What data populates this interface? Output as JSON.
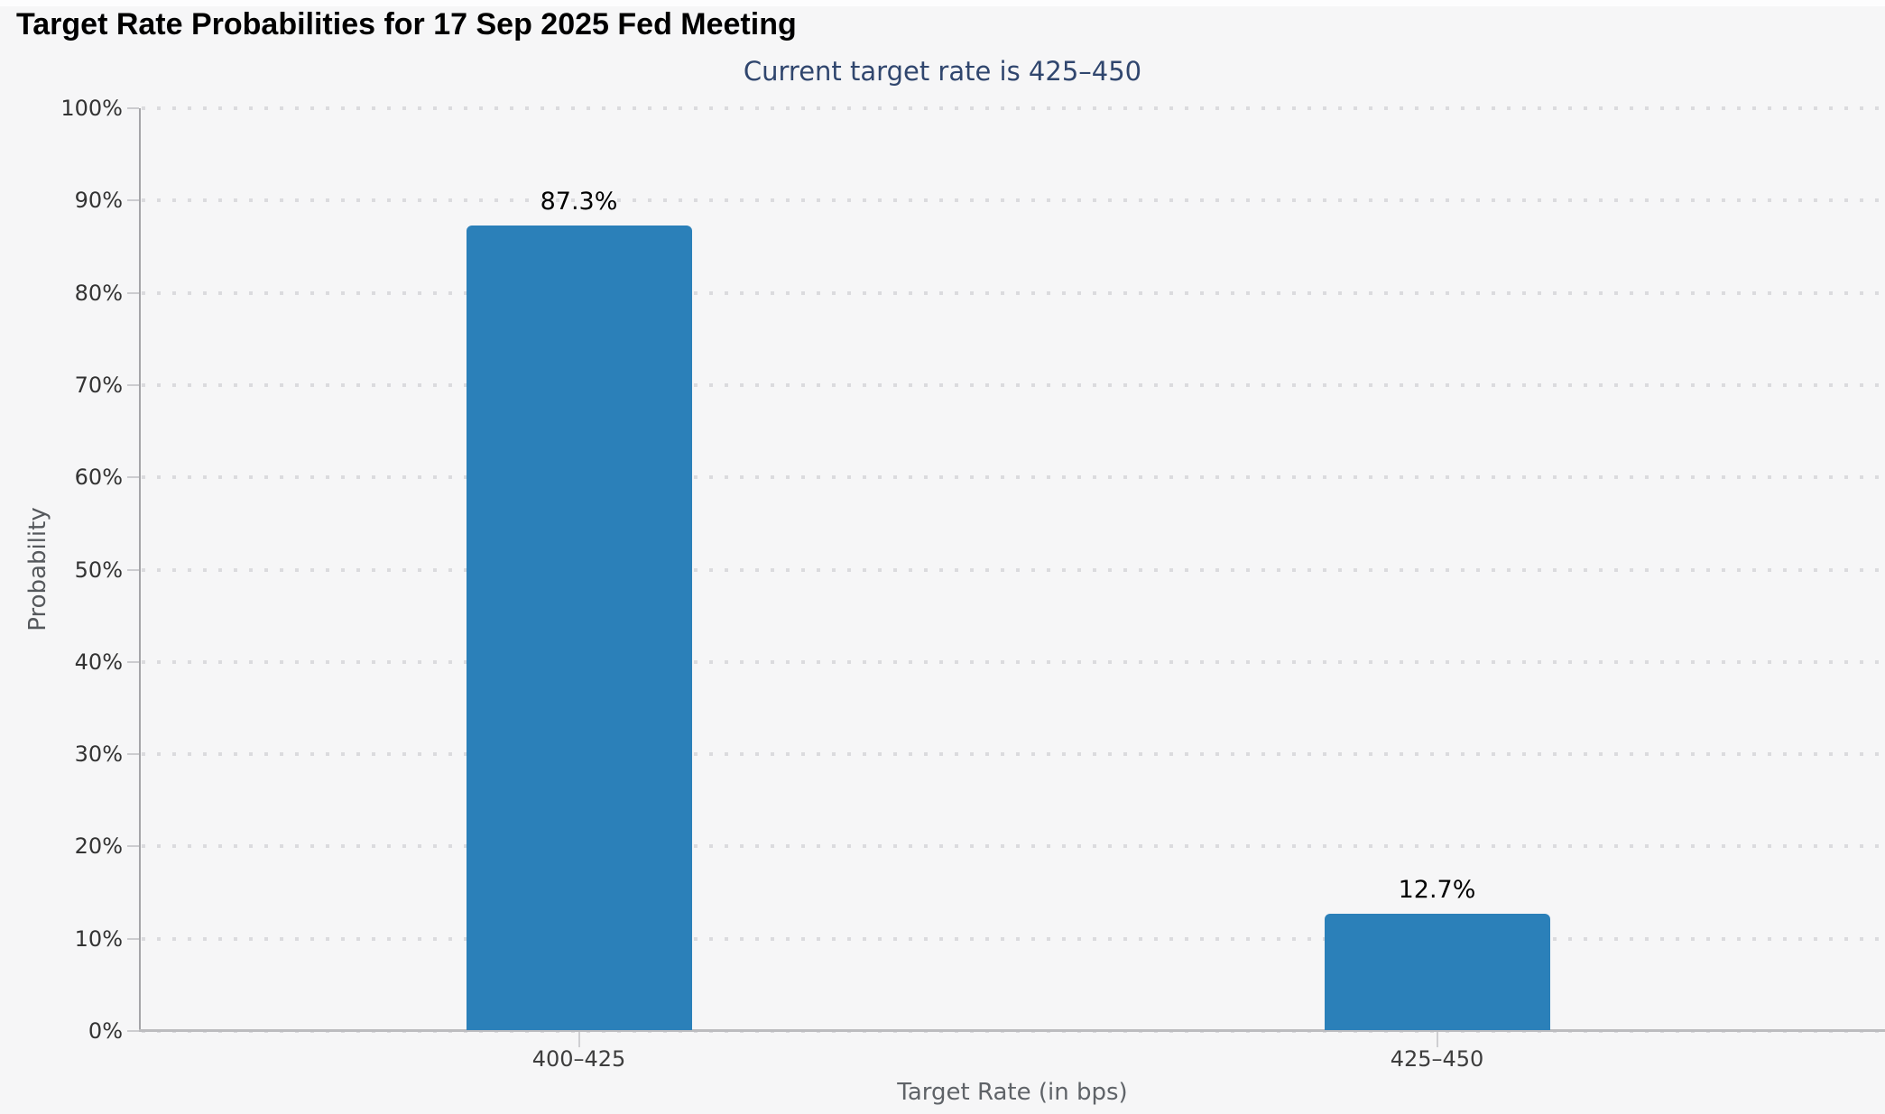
{
  "page": {
    "background_color": "#f6f6f7"
  },
  "chart_data": {
    "type": "bar",
    "title": "Target Rate Probabilities for 17 Sep 2025 Fed Meeting",
    "subtitle": "Current target rate is 425–450",
    "xlabel": "Target Rate (in bps)",
    "ylabel": "Probability",
    "categories": [
      "400–425",
      "425–450"
    ],
    "values": [
      87.3,
      12.7
    ],
    "data_labels": [
      "87.3%",
      "12.7%"
    ],
    "ytick_labels": [
      "0%",
      "10%",
      "20%",
      "30%",
      "40%",
      "50%",
      "60%",
      "70%",
      "80%",
      "90%",
      "100%"
    ],
    "ylim": [
      0,
      100
    ],
    "grid": "horizontal dotted gridlines at every 10%",
    "legend": "none",
    "colors": {
      "bar": "#2b80b9",
      "title": "#000000",
      "subtitle": "#30466e",
      "axis_line": "#a5a5a8",
      "grid_dot": "#dbdbde",
      "ytick_label": "#333333",
      "category_label": "#3d3d3d",
      "axis_title": "#5f6368",
      "background": "#f6f6f7"
    }
  }
}
